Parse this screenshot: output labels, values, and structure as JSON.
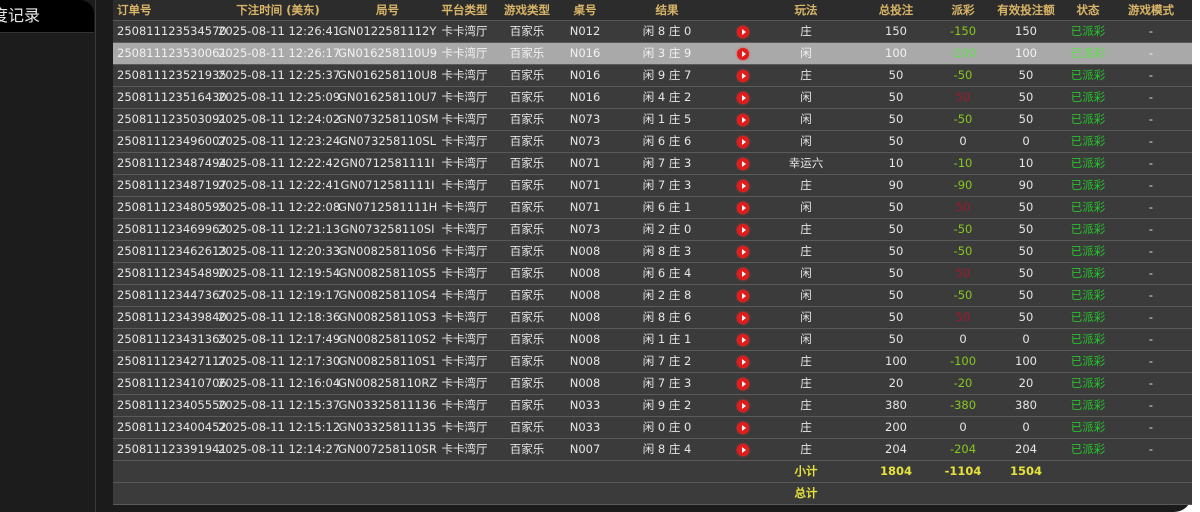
{
  "sidebar": {
    "active_item": "度记录"
  },
  "columns": [
    "订单号",
    "下注时间 (美东)",
    "局号",
    "平台类型",
    "游戏类型",
    "桌号",
    "结果",
    "",
    "玩法",
    "总投注",
    "派彩",
    "有效投注额",
    "状态",
    "游戏模式"
  ],
  "colors": {
    "header_text": "#d8b467",
    "payout_negative": "#86c81e",
    "payout_positive": "#a0182e",
    "status": "#27c22c",
    "subtotal": "#e6e23a",
    "highlight_row": "#a9a9a9"
  },
  "rows": [
    {
      "order": "250811123534570",
      "time": "2025-08-11 12:26:41",
      "round": "GN0122581112Y",
      "platform": "卡卡湾厅",
      "game": "百家乐",
      "table": "N012",
      "result": "闲 8 庄 0",
      "icon": "play-icon",
      "bet_type": "庄",
      "total": "150",
      "payout": "-150",
      "payout_sign": "neg",
      "valid": "150",
      "status": "已派彩",
      "mode": "-"
    },
    {
      "order": "250811123530061",
      "time": "2025-08-11 12:26:17",
      "round": "GN016258110U9",
      "platform": "卡卡湾厅",
      "game": "百家乐",
      "table": "N016",
      "result": "闲 3 庄 9",
      "icon": "play-icon",
      "bet_type": "闲",
      "total": "100",
      "payout": "-100",
      "payout_sign": "neg",
      "valid": "100",
      "status": "已派彩",
      "mode": "-",
      "highlighted": true
    },
    {
      "order": "250811123521935",
      "time": "2025-08-11 12:25:37",
      "round": "GN016258110U8",
      "platform": "卡卡湾厅",
      "game": "百家乐",
      "table": "N016",
      "result": "闲 9 庄 7",
      "icon": "play-icon",
      "bet_type": "庄",
      "total": "50",
      "payout": "-50",
      "payout_sign": "neg",
      "valid": "50",
      "status": "已派彩",
      "mode": "-"
    },
    {
      "order": "250811123516430",
      "time": "2025-08-11 12:25:09",
      "round": "GN016258110U7",
      "platform": "卡卡湾厅",
      "game": "百家乐",
      "table": "N016",
      "result": "闲 4 庄 2",
      "icon": "play-icon",
      "bet_type": "闲",
      "total": "50",
      "payout": "50",
      "payout_sign": "pos",
      "valid": "50",
      "status": "已派彩",
      "mode": "-"
    },
    {
      "order": "250811123503091",
      "time": "2025-08-11 12:24:02",
      "round": "GN073258110SM",
      "platform": "卡卡湾厅",
      "game": "百家乐",
      "table": "N073",
      "result": "闲 1 庄 5",
      "icon": "play-icon",
      "bet_type": "闲",
      "total": "50",
      "payout": "-50",
      "payout_sign": "neg",
      "valid": "50",
      "status": "已派彩",
      "mode": "-"
    },
    {
      "order": "250811123496007",
      "time": "2025-08-11 12:23:24",
      "round": "GN073258110SL",
      "platform": "卡卡湾厅",
      "game": "百家乐",
      "table": "N073",
      "result": "闲 6 庄 6",
      "icon": "play-icon",
      "bet_type": "闲",
      "total": "50",
      "payout": "0",
      "payout_sign": "zero",
      "valid": "0",
      "status": "已派彩",
      "mode": "-"
    },
    {
      "order": "250811123487494",
      "time": "2025-08-11 12:22:42",
      "round": "GN0712581111I",
      "platform": "卡卡湾厅",
      "game": "百家乐",
      "table": "N071",
      "result": "闲 7 庄 3",
      "icon": "play-icon",
      "bet_type": "幸运六",
      "total": "10",
      "payout": "-10",
      "payout_sign": "neg",
      "valid": "10",
      "status": "已派彩",
      "mode": "-"
    },
    {
      "order": "250811123487197",
      "time": "2025-08-11 12:22:41",
      "round": "GN0712581111I",
      "platform": "卡卡湾厅",
      "game": "百家乐",
      "table": "N071",
      "result": "闲 7 庄 3",
      "icon": "play-icon",
      "bet_type": "庄",
      "total": "90",
      "payout": "-90",
      "payout_sign": "neg",
      "valid": "90",
      "status": "已派彩",
      "mode": "-"
    },
    {
      "order": "250811123480595",
      "time": "2025-08-11 12:22:08",
      "round": "GN0712581111H",
      "platform": "卡卡湾厅",
      "game": "百家乐",
      "table": "N071",
      "result": "闲 6 庄 1",
      "icon": "play-icon",
      "bet_type": "闲",
      "total": "50",
      "payout": "50",
      "payout_sign": "pos",
      "valid": "50",
      "status": "已派彩",
      "mode": "-"
    },
    {
      "order": "250811123469963",
      "time": "2025-08-11 12:21:13",
      "round": "GN073258110SI",
      "platform": "卡卡湾厅",
      "game": "百家乐",
      "table": "N073",
      "result": "闲 2 庄 0",
      "icon": "play-icon",
      "bet_type": "庄",
      "total": "50",
      "payout": "-50",
      "payout_sign": "neg",
      "valid": "50",
      "status": "已派彩",
      "mode": "-"
    },
    {
      "order": "250811123462613",
      "time": "2025-08-11 12:20:33",
      "round": "GN008258110S6",
      "platform": "卡卡湾厅",
      "game": "百家乐",
      "table": "N008",
      "result": "闲 8 庄 3",
      "icon": "play-icon",
      "bet_type": "庄",
      "total": "50",
      "payout": "-50",
      "payout_sign": "neg",
      "valid": "50",
      "status": "已派彩",
      "mode": "-"
    },
    {
      "order": "250811123454890",
      "time": "2025-08-11 12:19:54",
      "round": "GN008258110S5",
      "platform": "卡卡湾厅",
      "game": "百家乐",
      "table": "N008",
      "result": "闲 6 庄 4",
      "icon": "play-icon",
      "bet_type": "闲",
      "total": "50",
      "payout": "50",
      "payout_sign": "pos",
      "valid": "50",
      "status": "已派彩",
      "mode": "-"
    },
    {
      "order": "250811123447367",
      "time": "2025-08-11 12:19:17",
      "round": "GN008258110S4",
      "platform": "卡卡湾厅",
      "game": "百家乐",
      "table": "N008",
      "result": "闲 2 庄 8",
      "icon": "play-icon",
      "bet_type": "闲",
      "total": "50",
      "payout": "-50",
      "payout_sign": "neg",
      "valid": "50",
      "status": "已派彩",
      "mode": "-"
    },
    {
      "order": "250811123439840",
      "time": "2025-08-11 12:18:36",
      "round": "GN008258110S3",
      "platform": "卡卡湾厅",
      "game": "百家乐",
      "table": "N008",
      "result": "闲 8 庄 6",
      "icon": "play-icon",
      "bet_type": "闲",
      "total": "50",
      "payout": "50",
      "payout_sign": "pos",
      "valid": "50",
      "status": "已派彩",
      "mode": "-"
    },
    {
      "order": "250811123431365",
      "time": "2025-08-11 12:17:49",
      "round": "GN008258110S2",
      "platform": "卡卡湾厅",
      "game": "百家乐",
      "table": "N008",
      "result": "闲 1 庄 1",
      "icon": "play-icon",
      "bet_type": "闲",
      "total": "50",
      "payout": "0",
      "payout_sign": "zero",
      "valid": "0",
      "status": "已派彩",
      "mode": "-"
    },
    {
      "order": "250811123427117",
      "time": "2025-08-11 12:17:30",
      "round": "GN008258110S1",
      "platform": "卡卡湾厅",
      "game": "百家乐",
      "table": "N008",
      "result": "闲 7 庄 2",
      "icon": "play-icon",
      "bet_type": "庄",
      "total": "100",
      "payout": "-100",
      "payout_sign": "neg",
      "valid": "100",
      "status": "已派彩",
      "mode": "-"
    },
    {
      "order": "250811123410706",
      "time": "2025-08-11 12:16:04",
      "round": "GN008258110RZ",
      "platform": "卡卡湾厅",
      "game": "百家乐",
      "table": "N008",
      "result": "闲 7 庄 3",
      "icon": "play-icon",
      "bet_type": "庄",
      "total": "20",
      "payout": "-20",
      "payout_sign": "neg",
      "valid": "20",
      "status": "已派彩",
      "mode": "-"
    },
    {
      "order": "250811123405550",
      "time": "2025-08-11 12:15:37",
      "round": "GN03325811136",
      "platform": "卡卡湾厅",
      "game": "百家乐",
      "table": "N033",
      "result": "闲 9 庄 2",
      "icon": "play-icon",
      "bet_type": "庄",
      "total": "380",
      "payout": "-380",
      "payout_sign": "neg",
      "valid": "380",
      "status": "已派彩",
      "mode": "-"
    },
    {
      "order": "250811123400452",
      "time": "2025-08-11 12:15:12",
      "round": "GN03325811135",
      "platform": "卡卡湾厅",
      "game": "百家乐",
      "table": "N033",
      "result": "闲 0 庄 0",
      "icon": "play-icon",
      "bet_type": "庄",
      "total": "200",
      "payout": "0",
      "payout_sign": "zero",
      "valid": "0",
      "status": "已派彩",
      "mode": "-"
    },
    {
      "order": "250811123391941",
      "time": "2025-08-11 12:14:27",
      "round": "GN007258110SR",
      "platform": "卡卡湾厅",
      "game": "百家乐",
      "table": "N007",
      "result": "闲 8 庄 4",
      "icon": "play-icon",
      "bet_type": "庄",
      "total": "204",
      "payout": "-204",
      "payout_sign": "neg",
      "valid": "204",
      "status": "已派彩",
      "mode": "-"
    }
  ],
  "subtotal": {
    "label": "小计",
    "total": "1804",
    "payout": "-1104",
    "valid": "1504"
  },
  "grand_total": {
    "label": "总计"
  }
}
